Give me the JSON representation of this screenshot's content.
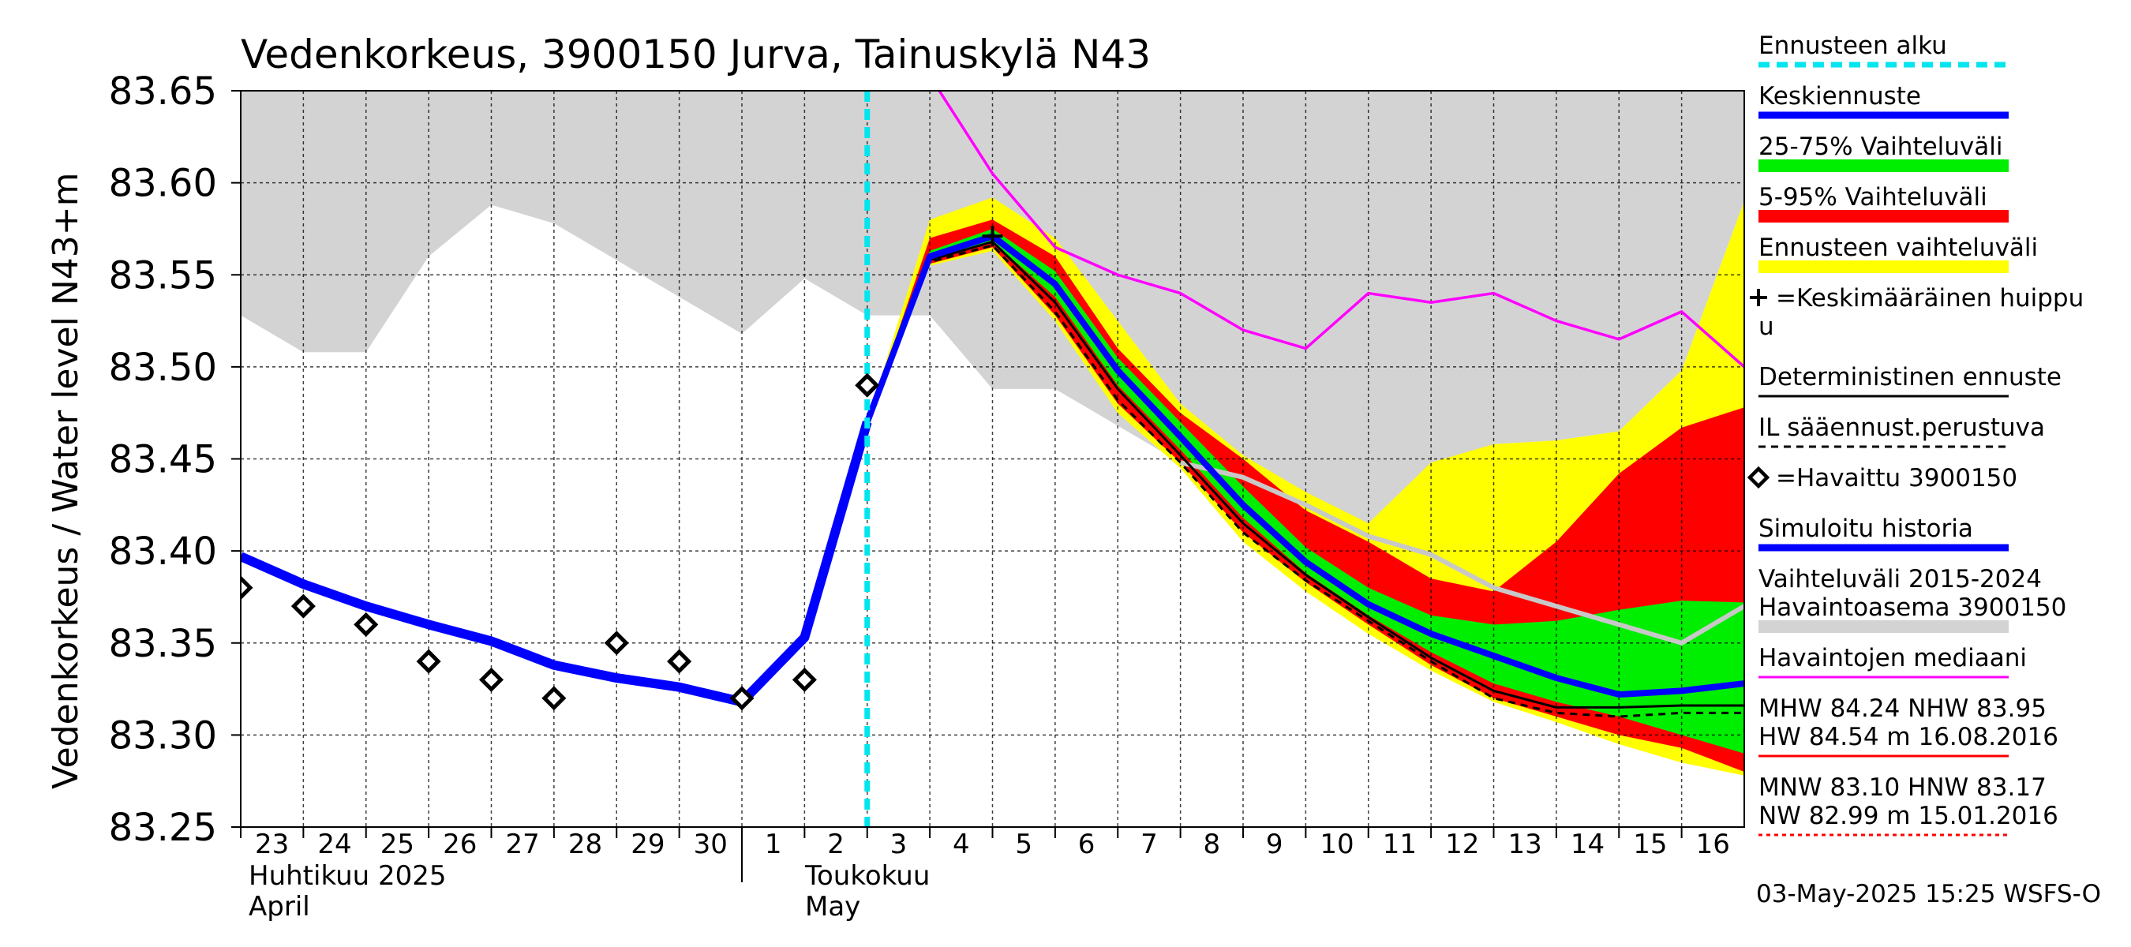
{
  "chart_data": {
    "type": "line",
    "title": "Vedenkorkeus, 3900150 Jurva, Tainuskylä N43",
    "ylabel": "Vedenkorkeus / Water level   N43+m",
    "ylim": [
      83.25,
      83.65
    ],
    "y_ticks": [
      "83.25",
      "83.30",
      "83.35",
      "83.40",
      "83.45",
      "83.50",
      "83.55",
      "83.60",
      "83.65"
    ],
    "x_ticks": [
      "23",
      "24",
      "25",
      "26",
      "27",
      "28",
      "29",
      "30",
      "1",
      "2",
      "3",
      "4",
      "5",
      "6",
      "7",
      "8",
      "9",
      "10",
      "11",
      "12",
      "13",
      "14",
      "15",
      "16"
    ],
    "month_labels": [
      {
        "fi": "Huhtikuu  2025",
        "en": "April"
      },
      {
        "fi": "Toukokuu",
        "en": "May"
      }
    ],
    "x_domain": [
      "2025-04-23",
      "2025-05-17"
    ],
    "grid": true,
    "forecast_start": "2025-05-03",
    "series": [
      {
        "name": "Vaihteluväli 2015-2024  Havaintoasema 3900150",
        "type": "band",
        "color": "#d3d3d3",
        "x": [
          "2025-04-23",
          "2025-04-24",
          "2025-04-25",
          "2025-04-26",
          "2025-04-27",
          "2025-04-28",
          "2025-04-29",
          "2025-04-30",
          "2025-05-01",
          "2025-05-02",
          "2025-05-03",
          "2025-05-04",
          "2025-05-05",
          "2025-05-06",
          "2025-05-07",
          "2025-05-08",
          "2025-05-09",
          "2025-05-10",
          "2025-05-11",
          "2025-05-12",
          "2025-05-13",
          "2025-05-14",
          "2025-05-15",
          "2025-05-16",
          "2025-05-17"
        ],
        "low": [
          83.528,
          83.508,
          83.508,
          83.56,
          83.588,
          83.578,
          83.558,
          83.538,
          83.518,
          83.548,
          83.528,
          83.528,
          83.488,
          83.488,
          83.468,
          83.448,
          83.438,
          83.418,
          83.408,
          83.435,
          83.458,
          83.46,
          83.465,
          83.498,
          83.59
        ],
        "high": [
          83.65,
          83.65,
          83.65,
          83.65,
          83.65,
          83.65,
          83.65,
          83.65,
          83.65,
          83.65,
          83.65,
          83.65,
          83.65,
          83.65,
          83.65,
          83.65,
          83.65,
          83.65,
          83.65,
          83.65,
          83.65,
          83.65,
          83.65,
          83.65,
          83.65
        ]
      },
      {
        "name": "Ennusteen vaihteluväli",
        "type": "band",
        "color": "#ffff00",
        "x": [
          "2025-05-03",
          "2025-05-04",
          "2025-05-05",
          "2025-05-06",
          "2025-05-07",
          "2025-05-08",
          "2025-05-09",
          "2025-05-10",
          "2025-05-11",
          "2025-05-12",
          "2025-05-13",
          "2025-05-14",
          "2025-05-15",
          "2025-05-16",
          "2025-05-17"
        ],
        "low": [
          83.47,
          83.555,
          83.563,
          83.525,
          83.475,
          83.445,
          83.405,
          83.378,
          83.355,
          83.335,
          83.318,
          83.307,
          83.295,
          83.285,
          83.278
        ],
        "high": [
          83.47,
          83.58,
          83.592,
          83.57,
          83.525,
          83.48,
          83.452,
          83.432,
          83.415,
          83.448,
          83.458,
          83.46,
          83.465,
          83.498,
          83.59
        ]
      },
      {
        "name": "5-95% Vaihteluväli",
        "type": "band",
        "color": "#ff0000",
        "x": [
          "2025-05-03",
          "2025-05-04",
          "2025-05-05",
          "2025-05-06",
          "2025-05-07",
          "2025-05-08",
          "2025-05-09",
          "2025-05-10",
          "2025-05-11",
          "2025-05-12",
          "2025-05-13",
          "2025-05-14",
          "2025-05-15",
          "2025-05-16",
          "2025-05-17"
        ],
        "low": [
          83.47,
          83.556,
          83.565,
          83.528,
          83.48,
          83.448,
          83.41,
          83.383,
          83.36,
          83.338,
          83.32,
          83.31,
          83.3,
          83.293,
          83.28
        ],
        "high": [
          83.47,
          83.57,
          83.58,
          83.56,
          83.51,
          83.475,
          83.45,
          83.422,
          83.405,
          83.385,
          83.378,
          83.405,
          83.442,
          83.467,
          83.478
        ]
      },
      {
        "name": "25-75% Vaihteluväli",
        "type": "band",
        "color": "#00ee00",
        "x": [
          "2025-05-03",
          "2025-05-04",
          "2025-05-05",
          "2025-05-06",
          "2025-05-07",
          "2025-05-08",
          "2025-05-09",
          "2025-05-10",
          "2025-05-11",
          "2025-05-12",
          "2025-05-13",
          "2025-05-14",
          "2025-05-15",
          "2025-05-16",
          "2025-05-17"
        ],
        "low": [
          83.47,
          83.558,
          83.568,
          83.538,
          83.49,
          83.455,
          83.418,
          83.388,
          83.365,
          83.345,
          83.328,
          83.318,
          83.31,
          83.3,
          83.29
        ],
        "high": [
          83.47,
          83.563,
          83.575,
          83.552,
          83.505,
          83.47,
          83.435,
          83.402,
          83.38,
          83.365,
          83.36,
          83.362,
          83.368,
          83.373,
          83.372
        ]
      },
      {
        "name": "Havaintojen mediaani",
        "type": "line",
        "color": "#ff00ff",
        "x": [
          "2025-05-03",
          "2025-05-04",
          "2025-05-05",
          "2025-05-06",
          "2025-05-07",
          "2025-05-08",
          "2025-05-09",
          "2025-05-10",
          "2025-05-11",
          "2025-05-12",
          "2025-05-13",
          "2025-05-14",
          "2025-05-15",
          "2025-05-16",
          "2025-05-17"
        ],
        "values": [
          83.69,
          83.658,
          83.605,
          83.565,
          83.55,
          83.54,
          83.52,
          83.51,
          83.54,
          83.535,
          83.54,
          83.525,
          83.515,
          83.53,
          83.5
        ]
      },
      {
        "name": "",
        "type": "line",
        "color": "#c8c8c8",
        "x": [
          "2025-05-08",
          "2025-05-09",
          "2025-05-10",
          "2025-05-11",
          "2025-05-12",
          "2025-05-13",
          "2025-05-14",
          "2025-05-15",
          "2025-05-16",
          "2025-05-17"
        ],
        "values": [
          83.448,
          83.44,
          83.425,
          83.408,
          83.398,
          83.38,
          83.37,
          83.36,
          83.35,
          83.37
        ]
      },
      {
        "name": "Simuloitu historia",
        "type": "line",
        "color": "#0000ff",
        "x": [
          "2025-04-23",
          "2025-04-24",
          "2025-04-25",
          "2025-04-26",
          "2025-04-27",
          "2025-04-28",
          "2025-04-29",
          "2025-04-30",
          "2025-05-01",
          "2025-05-02",
          "2025-05-03"
        ],
        "values": [
          83.397,
          83.382,
          83.37,
          83.36,
          83.351,
          83.338,
          83.331,
          83.326,
          83.318,
          83.353,
          83.47
        ]
      },
      {
        "name": "IL sääennust.perustuva",
        "type": "line",
        "color": "#000000",
        "dash": true,
        "x": [
          "2025-05-03",
          "2025-05-04",
          "2025-05-05",
          "2025-05-06",
          "2025-05-07",
          "2025-05-08",
          "2025-05-09",
          "2025-05-10",
          "2025-05-11",
          "2025-05-12",
          "2025-05-13",
          "2025-05-14",
          "2025-05-15",
          "2025-05-16",
          "2025-05-17"
        ],
        "values": [
          83.47,
          83.557,
          83.566,
          83.53,
          83.482,
          83.448,
          83.41,
          83.384,
          83.362,
          83.34,
          83.32,
          83.312,
          83.31,
          83.312,
          83.312
        ]
      },
      {
        "name": "Deterministinen ennuste",
        "type": "line",
        "color": "#000000",
        "x": [
          "2025-05-03",
          "2025-05-04",
          "2025-05-05",
          "2025-05-06",
          "2025-05-07",
          "2025-05-08",
          "2025-05-09",
          "2025-05-10",
          "2025-05-11",
          "2025-05-12",
          "2025-05-13",
          "2025-05-14",
          "2025-05-15",
          "2025-05-16",
          "2025-05-17"
        ],
        "values": [
          83.47,
          83.558,
          83.568,
          83.535,
          83.488,
          83.452,
          83.415,
          83.387,
          83.364,
          83.342,
          83.324,
          83.315,
          83.315,
          83.316,
          83.316
        ]
      },
      {
        "name": "Keskiennuste",
        "type": "line",
        "color": "#0000ff",
        "x": [
          "2025-05-03",
          "2025-05-04",
          "2025-05-05",
          "2025-05-06",
          "2025-05-07",
          "2025-05-08",
          "2025-05-09",
          "2025-05-10",
          "2025-05-11",
          "2025-05-12",
          "2025-05-13",
          "2025-05-14",
          "2025-05-15",
          "2025-05-16",
          "2025-05-17"
        ],
        "values": [
          83.47,
          83.56,
          83.571,
          83.545,
          83.498,
          83.462,
          83.425,
          83.394,
          83.371,
          83.355,
          83.343,
          83.331,
          83.322,
          83.324,
          83.328
        ]
      },
      {
        "name": "Havaittu 3900150",
        "type": "scatter",
        "color": "#000000",
        "x": [
          "2025-04-23",
          "2025-04-24",
          "2025-04-25",
          "2025-04-26",
          "2025-04-27",
          "2025-04-28",
          "2025-04-29",
          "2025-04-30",
          "2025-05-01",
          "2025-05-02",
          "2025-05-03"
        ],
        "values": [
          83.38,
          83.37,
          83.36,
          83.34,
          83.33,
          83.32,
          83.35,
          83.34,
          83.32,
          83.33,
          83.49
        ]
      },
      {
        "name": "Keskimääräinen huippu",
        "type": "marker",
        "color": "#000000",
        "x": [
          "2025-05-05"
        ],
        "values": [
          83.571
        ]
      }
    ],
    "legend": [
      {
        "label": "Ennusteen alku",
        "style": "dash",
        "color": "#00e5ee"
      },
      {
        "label": "Keskiennuste",
        "style": "line",
        "color": "#0000ff"
      },
      {
        "label": "25-75% Vaihteluväli",
        "style": "band",
        "color": "#00ee00"
      },
      {
        "label": "5-95% Vaihteluväli",
        "style": "band",
        "color": "#ff0000"
      },
      {
        "label": "Ennusteen vaihteluväli",
        "style": "band",
        "color": "#ffff00"
      },
      {
        "label": "=Keskimääräinen huippu",
        "label2": "u",
        "style": "plus",
        "color": "#000000"
      },
      {
        "label": "Deterministinen ennuste",
        "style": "line",
        "color": "#000000"
      },
      {
        "label": "IL sääennust.perustuva",
        "style": "dashline",
        "color": "#000000"
      },
      {
        "label": "=Havaittu 3900150",
        "style": "diamond",
        "color": "#000000"
      },
      {
        "label": "Simuloitu historia",
        "style": "line",
        "color": "#0000ff"
      },
      {
        "label": "Vaihteluväli 2015-2024",
        "label2": " Havaintoasema 3900150",
        "style": "band",
        "color": "#d3d3d3"
      },
      {
        "label": "Havaintojen mediaani",
        "style": "line",
        "color": "#ff00ff"
      },
      {
        "label": "MHW  84.24 NHW  83.95",
        "label2": "HW  84.54 m 16.08.2016",
        "style": "line",
        "color": "#ff0000"
      },
      {
        "label": "MNW  83.10 HNW  83.17",
        "label2": "NW  82.99 m 15.01.2016",
        "style": "dotline",
        "color": "#ff0000"
      }
    ],
    "footer": "03-May-2025 15:25 WSFS-O"
  }
}
